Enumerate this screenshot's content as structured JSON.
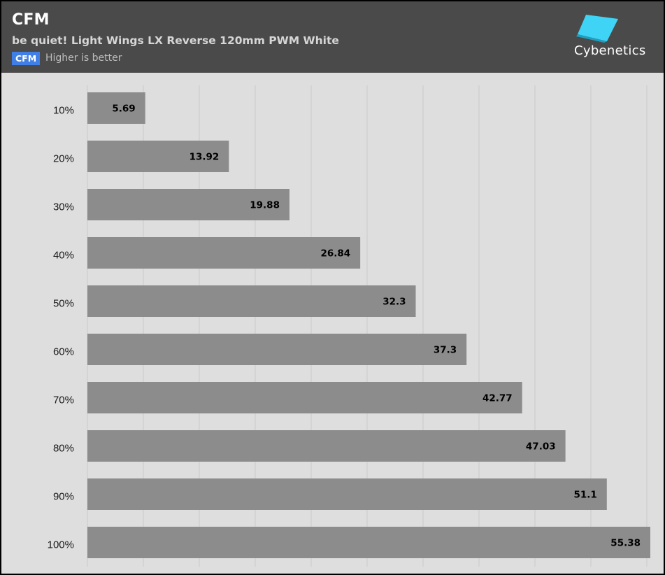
{
  "header": {
    "title": "CFM",
    "subtitle": "be quiet! Light Wings LX Reverse 120mm PWM White",
    "badge": "CFM",
    "note": "Higher is better",
    "logo_text": "Cybenetics"
  },
  "colors": {
    "header_bg": "#4a4a4a",
    "plot_bg": "#dedede",
    "bar": "#8c8c8c",
    "badge": "#3f7fe6",
    "logo_accent": "#3fd3f5"
  },
  "chart_data": {
    "type": "bar",
    "orientation": "horizontal",
    "title": "CFM",
    "subtitle": "be quiet! Light Wings LX Reverse 120mm PWM White",
    "categories": [
      "10%",
      "20%",
      "30%",
      "40%",
      "50%",
      "60%",
      "70%",
      "80%",
      "90%",
      "100%"
    ],
    "values": [
      5.69,
      13.92,
      19.88,
      26.84,
      32.3,
      37.3,
      42.77,
      47.03,
      51.1,
      55.38
    ],
    "value_labels": [
      "5.69",
      "13.92",
      "19.88",
      "26.84",
      "32.3",
      "37.3",
      "42.77",
      "47.03",
      "51.1",
      "55.38"
    ],
    "xlim": [
      0,
      55.38
    ],
    "xlabel": "",
    "ylabel": "",
    "grid": true
  }
}
